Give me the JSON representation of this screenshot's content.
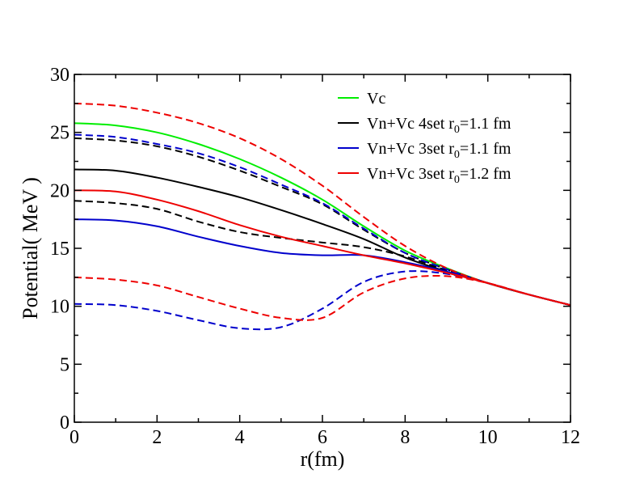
{
  "chart_data": {
    "type": "line",
    "title": "",
    "xlabel": "r(fm)",
    "ylabel": "Potential( MeV )",
    "xlim": [
      0,
      12
    ],
    "ylim": [
      0,
      30
    ],
    "xticks": [
      0,
      2,
      4,
      6,
      8,
      10,
      12
    ],
    "yticks": [
      0,
      5,
      10,
      15,
      20,
      25,
      30
    ],
    "xtick_labels": [
      "0",
      "2",
      "4",
      "6",
      "8",
      "10",
      "12"
    ],
    "ytick_labels": [
      "0",
      "5",
      "10",
      "15",
      "20",
      "25",
      "30"
    ],
    "grid": false,
    "legend_position": "top-right",
    "legend": [
      {
        "color": "#00ee00",
        "text": "Vc",
        "subscript": "",
        "tail": ""
      },
      {
        "color": "#000000",
        "text": "Vn+Vc 4set r",
        "subscript": "0",
        "tail": "=1.1 fm"
      },
      {
        "color": "#0000cc",
        "text": "Vn+Vc 3set r",
        "subscript": "0",
        "tail": "=1.1 fm"
      },
      {
        "color": "#ee0000",
        "text": "Vn+Vc 3set r",
        "subscript": "0",
        "tail": "=1.2 fm"
      }
    ],
    "series": [
      {
        "name": "Vc",
        "color": "#00ee00",
        "dash": "solid",
        "x": [
          0,
          1,
          2,
          3,
          4,
          5,
          6,
          7,
          8,
          9,
          10,
          11,
          12
        ],
        "y": [
          25.8,
          25.6,
          25.0,
          24.0,
          22.7,
          21.1,
          19.2,
          16.9,
          14.8,
          13.3,
          12.0,
          11.0,
          10.1
        ]
      },
      {
        "name": "Vn+Vc 4set r0=1.1 fm (solid)",
        "color": "#000000",
        "dash": "solid",
        "x": [
          0,
          1,
          2,
          3,
          4,
          5,
          6,
          7,
          8,
          9,
          10,
          11,
          12
        ],
        "y": [
          21.8,
          21.7,
          21.1,
          20.3,
          19.4,
          18.3,
          17.1,
          15.8,
          14.2,
          13.0,
          12.0,
          11.0,
          10.1
        ]
      },
      {
        "name": "Vn+Vc 4set r0=1.1 fm (dashed, upper)",
        "color": "#000000",
        "dash": "dashed",
        "x": [
          0,
          1,
          2,
          3,
          4,
          5,
          6,
          7,
          8,
          9,
          10,
          11,
          12
        ],
        "y": [
          24.5,
          24.3,
          23.8,
          22.9,
          21.7,
          20.3,
          18.8,
          16.6,
          14.6,
          13.2,
          12.0,
          11.0,
          10.1
        ]
      },
      {
        "name": "Vn+Vc 4set r0=1.1 fm (dashed, lower)",
        "color": "#000000",
        "dash": "dashed",
        "x": [
          0,
          1,
          2,
          3,
          4,
          5,
          6,
          7,
          8,
          9,
          10,
          11,
          12
        ],
        "y": [
          19.1,
          18.9,
          18.4,
          17.3,
          16.4,
          15.9,
          15.5,
          15.1,
          14.3,
          13.1,
          12.0,
          11.0,
          10.1
        ]
      },
      {
        "name": "Vn+Vc 3set r0=1.1 fm (solid)",
        "color": "#0000cc",
        "dash": "solid",
        "x": [
          0,
          1,
          2,
          3,
          4,
          5,
          6,
          7,
          8,
          9,
          10,
          11,
          12
        ],
        "y": [
          17.5,
          17.4,
          16.9,
          16.0,
          15.2,
          14.6,
          14.4,
          14.4,
          13.8,
          13.0,
          12.0,
          11.0,
          10.1
        ]
      },
      {
        "name": "Vn+Vc 3set r0=1.1 fm (dashed, upper)",
        "color": "#0000cc",
        "dash": "dashed",
        "x": [
          0,
          1,
          2,
          3,
          4,
          5,
          6,
          7,
          8,
          9,
          10,
          11,
          12
        ],
        "y": [
          24.8,
          24.6,
          24.0,
          23.2,
          22.0,
          20.5,
          18.9,
          16.7,
          14.6,
          13.2,
          12.0,
          11.0,
          10.1
        ]
      },
      {
        "name": "Vn+Vc 3set r0=1.1 fm (dashed, lower)",
        "color": "#0000cc",
        "dash": "dashed",
        "x": [
          0,
          1,
          2,
          3,
          4,
          5,
          6,
          7,
          8,
          9,
          10,
          11,
          12
        ],
        "y": [
          10.2,
          10.1,
          9.6,
          8.8,
          8.1,
          8.2,
          9.8,
          12.1,
          13.0,
          12.8,
          12.0,
          11.0,
          10.1
        ]
      },
      {
        "name": "Vn+Vc 3set r0=1.2 fm (solid)",
        "color": "#ee0000",
        "dash": "solid",
        "x": [
          0,
          1,
          2,
          3,
          4,
          5,
          6,
          7,
          8,
          9,
          10,
          11,
          12
        ],
        "y": [
          20.0,
          19.9,
          19.2,
          18.2,
          17.0,
          16.0,
          15.2,
          14.4,
          13.7,
          12.9,
          12.0,
          11.0,
          10.1
        ]
      },
      {
        "name": "Vn+Vc 3set r0=1.2 fm (dashed, upper)",
        "color": "#ee0000",
        "dash": "dashed",
        "x": [
          0,
          1,
          2,
          3,
          4,
          5,
          6,
          7,
          8,
          9,
          10,
          11,
          12
        ],
        "y": [
          27.5,
          27.3,
          26.7,
          25.8,
          24.5,
          22.7,
          20.4,
          17.7,
          15.2,
          13.3,
          12.0,
          11.0,
          10.1
        ]
      },
      {
        "name": "Vn+Vc 3set r0=1.2 fm (dashed, lower)",
        "color": "#ee0000",
        "dash": "dashed",
        "x": [
          0,
          1,
          2,
          3,
          4,
          5,
          6,
          7,
          8,
          9,
          10,
          11,
          12
        ],
        "y": [
          12.5,
          12.3,
          11.8,
          10.8,
          9.8,
          9.0,
          9.0,
          11.2,
          12.4,
          12.6,
          12.0,
          11.0,
          10.1
        ]
      }
    ]
  }
}
